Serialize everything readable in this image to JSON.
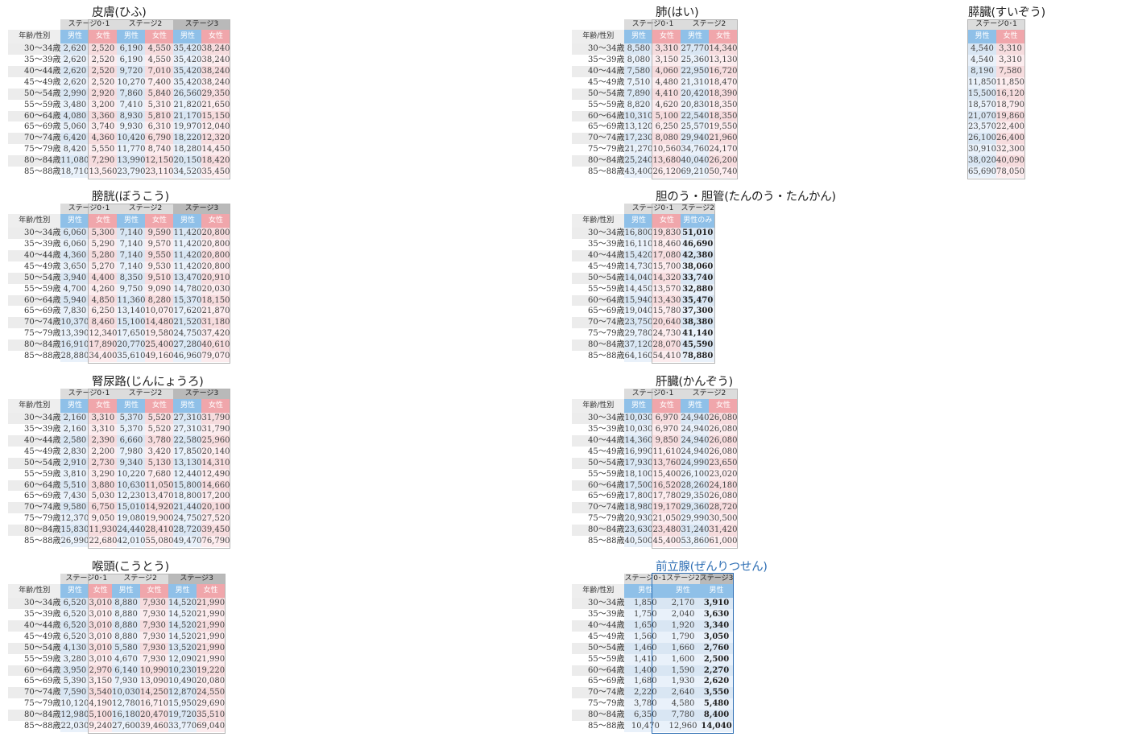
{
  "age_header": "年齢/性別",
  "ages": [
    "30～34歳",
    "35～39歳",
    "40～44歳",
    "45～49歳",
    "50～54歳",
    "55～59歳",
    "60～64歳",
    "65～69歳",
    "70～74歳",
    "75～79歳",
    "80～84歳",
    "85～88歳"
  ],
  "tables": [
    {
      "title": "皮膚(ひふ)",
      "stages": [
        {
          "label": "ステージ0･1",
          "cols": [
            {
              "label": "男性",
              "sex": "m",
              "values": [
                "2,620",
                "2,620",
                "2,620",
                "2,620",
                "2,990",
                "3,480",
                "4,080",
                "5,060",
                "6,420",
                "8,420",
                "11,080",
                "18,710"
              ]
            },
            {
              "label": "女性",
              "sex": "f",
              "values": [
                "2,520",
                "2,520",
                "2,520",
                "2,520",
                "2,920",
                "3,200",
                "3,360",
                "3,740",
                "4,360",
                "5,550",
                "7,290",
                "13,560"
              ]
            }
          ]
        },
        {
          "label": "ステージ2",
          "cols": [
            {
              "label": "男性",
              "sex": "m",
              "values": [
                "6,190",
                "6,190",
                "9,720",
                "10,270",
                "7,860",
                "7,410",
                "8,930",
                "9,930",
                "10,420",
                "11,770",
                "13,990",
                "23,790"
              ]
            },
            {
              "label": "女性",
              "sex": "f",
              "values": [
                "4,550",
                "4,550",
                "7,010",
                "7,400",
                "5,840",
                "5,310",
                "5,810",
                "6,310",
                "6,790",
                "8,740",
                "12,150",
                "23,110"
              ]
            }
          ]
        },
        {
          "label": "ステージ3",
          "cols": [
            {
              "label": "男性",
              "sex": "m",
              "values": [
                "35,420",
                "35,420",
                "35,420",
                "35,420",
                "26,560",
                "21,820",
                "21,170",
                "19,970",
                "18,220",
                "18,280",
                "20,150",
                "34,520"
              ]
            },
            {
              "label": "女性",
              "sex": "f",
              "values": [
                "38,240",
                "38,240",
                "38,240",
                "38,240",
                "29,350",
                "21,650",
                "15,150",
                "12,040",
                "12,320",
                "14,450",
                "18,420",
                "35,450"
              ]
            }
          ]
        }
      ]
    },
    {
      "title": "肺(はい)",
      "stages": [
        {
          "label": "ステージ0･1",
          "cols": [
            {
              "label": "男性",
              "sex": "m",
              "values": [
                "8,580",
                "8,080",
                "7,580",
                "7,510",
                "7,890",
                "8,820",
                "10,310",
                "13,120",
                "17,230",
                "21,270",
                "25,240",
                "43,400"
              ]
            },
            {
              "label": "女性",
              "sex": "f",
              "values": [
                "3,310",
                "3,150",
                "4,060",
                "4,480",
                "4,410",
                "4,620",
                "5,100",
                "6,250",
                "8,080",
                "10,560",
                "13,680",
                "26,120"
              ]
            }
          ]
        },
        {
          "label": "ステージ2",
          "cols": [
            {
              "label": "男性",
              "sex": "m",
              "values": [
                "27,770",
                "25,360",
                "22,950",
                "21,310",
                "20,420",
                "20,830",
                "22,540",
                "25,570",
                "29,940",
                "34,760",
                "40,040",
                "69,210"
              ]
            },
            {
              "label": "女性",
              "sex": "f",
              "values": [
                "14,340",
                "13,130",
                "16,720",
                "18,470",
                "18,390",
                "18,350",
                "18,350",
                "19,550",
                "21,960",
                "24,170",
                "26,200",
                "50,740"
              ]
            }
          ]
        }
      ]
    },
    {
      "title": "膵臓(すいぞう)",
      "stages": [
        {
          "label": "ステージ0･1",
          "cols": [
            {
              "label": "男性",
              "sex": "m",
              "values": [
                "4,540",
                "4,540",
                "8,190",
                "11,850",
                "15,500",
                "18,570",
                "21,070",
                "23,570",
                "26,100",
                "30,910",
                "38,020",
                "65,690"
              ]
            },
            {
              "label": "女性",
              "sex": "f",
              "values": [
                "3,310",
                "3,310",
                "7,580",
                "11,850",
                "16,120",
                "18,790",
                "19,860",
                "22,400",
                "26,400",
                "32,300",
                "40,090",
                "78,050"
              ]
            }
          ]
        }
      ]
    },
    {
      "title": "膀胱(ぼうこう)",
      "stages": [
        {
          "label": "ステージ0･1",
          "cols": [
            {
              "label": "男性",
              "sex": "m",
              "values": [
                "6,060",
                "6,060",
                "4,360",
                "3,650",
                "3,940",
                "4,700",
                "5,940",
                "7,830",
                "10,370",
                "13,390",
                "16,910",
                "28,880"
              ]
            },
            {
              "label": "女性",
              "sex": "f",
              "values": [
                "5,300",
                "5,290",
                "5,280",
                "5,270",
                "4,400",
                "4,260",
                "4,850",
                "6,250",
                "8,460",
                "12,340",
                "17,890",
                "34,400"
              ]
            }
          ]
        },
        {
          "label": "ステージ2",
          "cols": [
            {
              "label": "男性",
              "sex": "m",
              "values": [
                "7,140",
                "7,140",
                "7,140",
                "7,140",
                "8,350",
                "9,750",
                "11,360",
                "13,140",
                "15,100",
                "17,650",
                "20,770",
                "35,610"
              ]
            },
            {
              "label": "女性",
              "sex": "f",
              "values": [
                "9,590",
                "9,570",
                "9,550",
                "9,530",
                "9,510",
                "9,090",
                "8,280",
                "10,070",
                "14,480",
                "19,580",
                "25,400",
                "49,160"
              ]
            }
          ]
        },
        {
          "label": "ステージ3",
          "cols": [
            {
              "label": "男性",
              "sex": "m",
              "values": [
                "11,420",
                "11,420",
                "11,420",
                "11,420",
                "13,470",
                "14,780",
                "15,370",
                "17,620",
                "21,520",
                "24,750",
                "27,280",
                "46,960"
              ]
            },
            {
              "label": "女性",
              "sex": "f",
              "values": [
                "20,800",
                "20,800",
                "20,800",
                "20,800",
                "20,910",
                "20,030",
                "18,150",
                "21,870",
                "31,180",
                "37,420",
                "40,610",
                "79,070"
              ]
            }
          ]
        }
      ]
    },
    {
      "title": "胆のう・胆管(たんのう・たんかん)",
      "stages": [
        {
          "label": "ステージ0･1",
          "cols": [
            {
              "label": "男性",
              "sex": "m",
              "values": [
                "16,800",
                "16,110",
                "15,420",
                "14,730",
                "14,040",
                "14,450",
                "15,940",
                "19,040",
                "23,750",
                "29,780",
                "37,120",
                "64,160"
              ]
            },
            {
              "label": "女性",
              "sex": "f",
              "values": [
                "19,830",
                "18,460",
                "17,080",
                "15,700",
                "14,320",
                "13,570",
                "13,430",
                "15,780",
                "20,640",
                "24,730",
                "28,070",
                "54,410"
              ]
            }
          ]
        },
        {
          "label": "ステージ2",
          "cols": [
            {
              "label": "男性のみ",
              "sex": "m",
              "bold": true,
              "values": [
                "51,010",
                "46,690",
                "42,380",
                "38,060",
                "33,740",
                "32,880",
                "35,470",
                "37,300",
                "38,380",
                "41,140",
                "45,590",
                "78,880"
              ]
            }
          ]
        }
      ]
    },
    {
      "title": "腎尿路(じんにょうろ)",
      "stages": [
        {
          "label": "ステージ0･1",
          "cols": [
            {
              "label": "男性",
              "sex": "m",
              "values": [
                "2,160",
                "2,160",
                "2,580",
                "2,830",
                "2,910",
                "3,810",
                "5,510",
                "7,430",
                "9,580",
                "12,370",
                "15,830",
                "26,990"
              ]
            },
            {
              "label": "女性",
              "sex": "f",
              "values": [
                "3,310",
                "3,310",
                "2,390",
                "2,200",
                "2,730",
                "3,290",
                "3,880",
                "5,030",
                "6,750",
                "9,050",
                "11,930",
                "22,680"
              ]
            }
          ]
        },
        {
          "label": "ステージ2",
          "cols": [
            {
              "label": "男性",
              "sex": "m",
              "values": [
                "5,370",
                "5,370",
                "6,660",
                "7,980",
                "9,340",
                "10,220",
                "10,630",
                "12,230",
                "15,010",
                "19,080",
                "24,440",
                "42,010"
              ]
            },
            {
              "label": "女性",
              "sex": "f",
              "values": [
                "5,520",
                "5,520",
                "3,780",
                "3,420",
                "5,130",
                "7,680",
                "11,050",
                "13,470",
                "14,920",
                "19,900",
                "28,410",
                "55,080"
              ]
            }
          ]
        },
        {
          "label": "ステージ3",
          "cols": [
            {
              "label": "男性",
              "sex": "m",
              "values": [
                "27,310",
                "27,310",
                "22,580",
                "17,850",
                "13,130",
                "12,440",
                "15,800",
                "18,800",
                "21,440",
                "24,750",
                "28,720",
                "49,470"
              ]
            },
            {
              "label": "女性",
              "sex": "f",
              "values": [
                "31,790",
                "31,790",
                "25,960",
                "20,140",
                "14,310",
                "12,490",
                "14,660",
                "17,200",
                "20,100",
                "27,520",
                "39,450",
                "76,790"
              ]
            }
          ]
        }
      ]
    },
    {
      "title": "肝臓(かんぞう)",
      "stages": [
        {
          "label": "ステージ0･1",
          "cols": [
            {
              "label": "男性",
              "sex": "m",
              "values": [
                "10,030",
                "10,030",
                "14,360",
                "16,990",
                "17,930",
                "18,100",
                "17,500",
                "17,800",
                "18,980",
                "20,930",
                "23,630",
                "40,500"
              ]
            },
            {
              "label": "女性",
              "sex": "f",
              "values": [
                "6,970",
                "6,970",
                "9,850",
                "11,610",
                "13,760",
                "15,400",
                "16,520",
                "17,780",
                "19,170",
                "21,050",
                "23,480",
                "45,400"
              ]
            }
          ]
        },
        {
          "label": "ステージ2",
          "cols": [
            {
              "label": "男性",
              "sex": "m",
              "values": [
                "24,940",
                "24,940",
                "24,940",
                "24,940",
                "24,990",
                "26,100",
                "28,260",
                "29,350",
                "29,360",
                "29,990",
                "31,240",
                "53,860"
              ]
            },
            {
              "label": "女性",
              "sex": "f",
              "values": [
                "26,080",
                "26,080",
                "26,080",
                "26,080",
                "23,650",
                "23,020",
                "24,180",
                "26,080",
                "28,720",
                "30,500",
                "31,420",
                "61,000"
              ]
            }
          ]
        }
      ]
    },
    {
      "title": "喉頭(こうとう)",
      "stages": [
        {
          "label": "ステージ0･1",
          "cols": [
            {
              "label": "男性",
              "sex": "m",
              "values": [
                "6,520",
                "6,520",
                "6,520",
                "6,520",
                "4,130",
                "3,280",
                "3,950",
                "5,390",
                "7,590",
                "10,120",
                "12,980",
                "22,030"
              ]
            },
            {
              "label": "女性",
              "sex": "f",
              "values": [
                "3,010",
                "3,010",
                "3,010",
                "3,010",
                "3,010",
                "3,010",
                "2,970",
                "3,150",
                "3,540",
                "4,190",
                "5,100",
                "9,240"
              ]
            }
          ]
        },
        {
          "label": "ステージ2",
          "cols": [
            {
              "label": "男性",
              "sex": "m",
              "values": [
                "8,880",
                "8,880",
                "8,880",
                "8,880",
                "5,580",
                "4,670",
                "6,140",
                "7,930",
                "10,030",
                "12,780",
                "16,180",
                "27,600"
              ]
            },
            {
              "label": "女性",
              "sex": "f",
              "values": [
                "7,930",
                "7,930",
                "7,930",
                "7,930",
                "7,930",
                "7,930",
                "10,990",
                "13,090",
                "14,250",
                "16,710",
                "20,470",
                "39,460"
              ]
            }
          ]
        },
        {
          "label": "ステージ3",
          "cols": [
            {
              "label": "男性",
              "sex": "m",
              "values": [
                "14,520",
                "14,520",
                "14,520",
                "14,520",
                "13,520",
                "12,090",
                "10,230",
                "10,490",
                "12,870",
                "15,950",
                "19,720",
                "33,770"
              ]
            },
            {
              "label": "女性",
              "sex": "f",
              "values": [
                "21,990",
                "21,990",
                "21,990",
                "21,990",
                "21,990",
                "21,990",
                "19,220",
                "20,080",
                "24,550",
                "29,690",
                "35,510",
                "69,040"
              ]
            }
          ]
        }
      ]
    },
    {
      "title": "前立腺(ぜんりつせん)",
      "blue": true,
      "stages": [
        {
          "label": "ステージ0･1",
          "cols": [
            {
              "label": "男性",
              "sex": "m",
              "values": [
                "1,850",
                "1,750",
                "1,650",
                "1,560",
                "1,460",
                "1,410",
                "1,400",
                "1,680",
                "2,220",
                "3,780",
                "6,350",
                "10,470"
              ]
            }
          ]
        },
        {
          "label": "ステージ2",
          "cols": [
            {
              "label": "男性",
              "sex": "m",
              "values": [
                "2,170",
                "2,040",
                "1,920",
                "1,790",
                "1,660",
                "1,600",
                "1,590",
                "1,930",
                "2,640",
                "4,580",
                "7,780",
                "12,960"
              ]
            }
          ]
        },
        {
          "label": "ステージ3",
          "cols": [
            {
              "label": "男性",
              "sex": "m",
              "bold": true,
              "values": [
                "3,910",
                "3,630",
                "3,340",
                "3,050",
                "2,760",
                "2,500",
                "2,270",
                "2,620",
                "3,550",
                "5,480",
                "8,400",
                "14,040"
              ]
            }
          ]
        }
      ]
    }
  ]
}
